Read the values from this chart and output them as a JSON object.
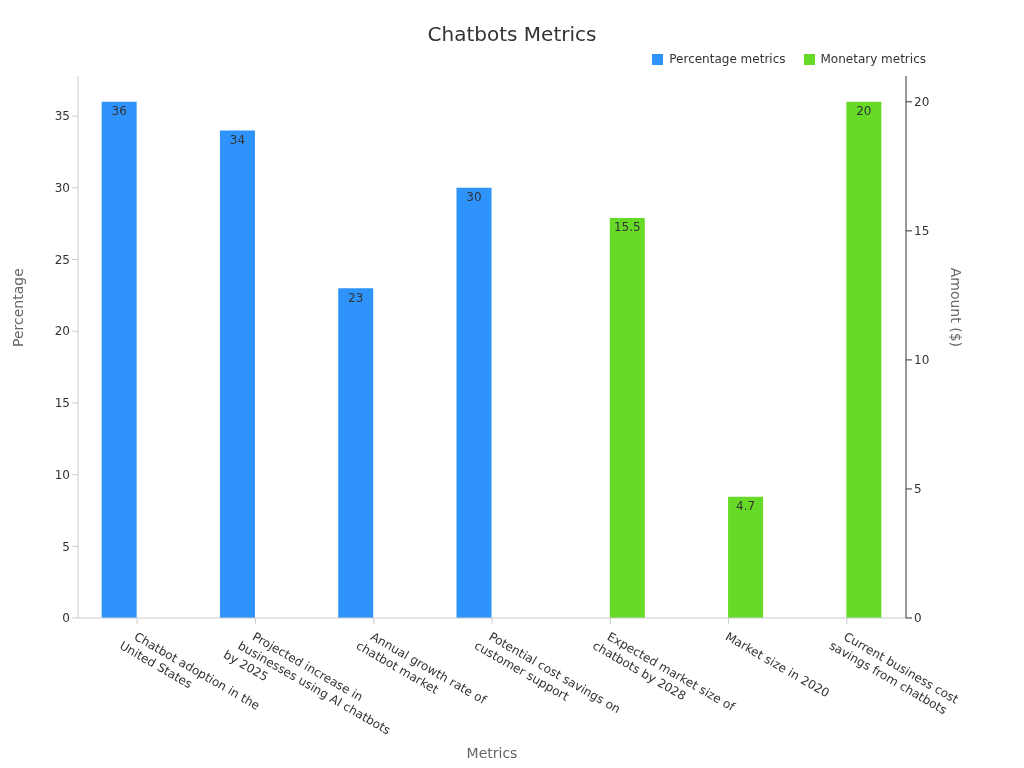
{
  "chart_data": {
    "type": "bar",
    "title": "Chatbots Metrics",
    "xlabel": "Metrics",
    "ylabel": "Percentage",
    "y2label": "Amount ($)",
    "categories": [
      "Chatbot adoption in the United States",
      "Projected increase in businesses using AI chatbots by 2025",
      "Annual growth rate of chatbot market",
      "Potential cost savings on customer support",
      "Expected market size of chatbots by 2028",
      "Market size in 2020",
      "Current business cost savings from chatbots"
    ],
    "series": [
      {
        "name": "Percentage metrics",
        "color": "#2e93fa",
        "values": [
          36,
          34,
          23,
          30,
          null,
          null,
          null
        ]
      },
      {
        "name": "Monetary metrics",
        "color": "#66da26",
        "axis": "y2",
        "values": [
          null,
          null,
          null,
          null,
          15.5,
          4.7,
          20
        ]
      }
    ],
    "ylim": [
      0,
      37.8
    ],
    "yticks": [
      0,
      5,
      10,
      15,
      20,
      25,
      30,
      35
    ],
    "y2lim": [
      0,
      21
    ],
    "y2ticks": [
      0,
      5,
      10,
      15,
      20
    ],
    "data_labels": true,
    "legend": "top right"
  }
}
